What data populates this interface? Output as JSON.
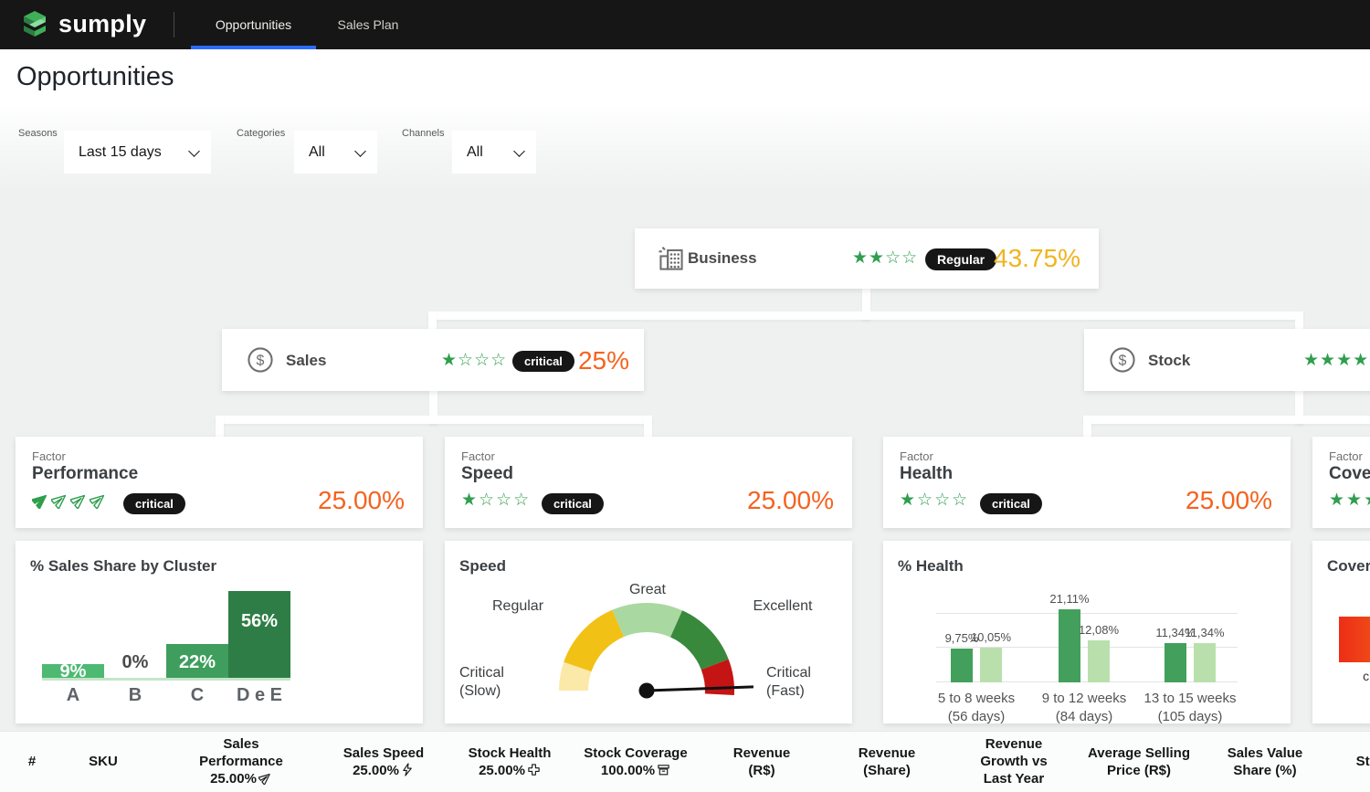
{
  "nav": {
    "brand": "sumply",
    "tabs": [
      {
        "label": "Opportunities",
        "active": true
      },
      {
        "label": "Sales Plan",
        "active": false
      }
    ]
  },
  "page": {
    "title": "Opportunities"
  },
  "filters": [
    {
      "label": "Seasons",
      "value": "Last 15 days"
    },
    {
      "label": "Categories",
      "value": "All"
    },
    {
      "label": "Channels",
      "value": "All"
    }
  ],
  "colors": {
    "nav_bg": "#161616",
    "active_tab_underline": "#2c6bff",
    "star_green": "#2f9e4e",
    "value_amber": "#f0b41f",
    "value_orange": "#f4631f",
    "badge_bg": "#161616",
    "canvas_bg": "#eff1f1"
  },
  "tree": {
    "business": {
      "label": "Business",
      "rating": {
        "filled": 2,
        "total": 4,
        "icon": "star"
      },
      "badge": "Regular",
      "value": "43.75%",
      "value_color": "#f0b41f"
    },
    "sales": {
      "label": "Sales",
      "rating": {
        "filled": 1,
        "total": 4,
        "icon": "star"
      },
      "badge": "critical",
      "value": "25%",
      "value_color": "#f4631f"
    },
    "stock": {
      "label": "Stock",
      "rating": {
        "filled": 4,
        "total": 4,
        "icon": "star"
      }
    },
    "factors": [
      {
        "kicker": "Factor",
        "name": "Performance",
        "rating": {
          "filled": 1,
          "total": 4,
          "icon": "jet"
        },
        "badge": "critical",
        "value": "25.00%"
      },
      {
        "kicker": "Factor",
        "name": "Speed",
        "rating": {
          "filled": 1,
          "total": 4,
          "icon": "star"
        },
        "badge": "critical",
        "value": "25.00%"
      },
      {
        "kicker": "Factor",
        "name": "Health",
        "rating": {
          "filled": 1,
          "total": 4,
          "icon": "star"
        },
        "badge": "critical",
        "value": "25.00%"
      },
      {
        "kicker": "Factor",
        "name": "Coverage",
        "rating": {
          "filled": 4,
          "total": 4,
          "icon": "star"
        }
      }
    ]
  },
  "chart_data": [
    {
      "id": "sales_share_by_cluster",
      "type": "bar",
      "title": "% Sales Share by Cluster",
      "categories": [
        "A",
        "B",
        "C",
        "D e E"
      ],
      "values": [
        9,
        0,
        22,
        56
      ],
      "value_labels": [
        "9%",
        "0%",
        "22%",
        "56%"
      ],
      "bar_colors": [
        "#4db973",
        "#4db973",
        "#3f9e5d",
        "#2e7d46"
      ],
      "ylim": [
        0,
        60
      ],
      "grid": false
    },
    {
      "id": "speed_gauge",
      "type": "gauge",
      "title": "Speed",
      "segments": [
        {
          "label": "Critical (Slow)",
          "from_deg": 180,
          "to_deg": 161,
          "color": "#fbe9a9"
        },
        {
          "label": "Regular",
          "from_deg": 161,
          "to_deg": 113,
          "color": "#f2c116"
        },
        {
          "label": "Great",
          "from_deg": 113,
          "to_deg": 66,
          "color": "#a9d8a1"
        },
        {
          "label": "Excellent",
          "from_deg": 66,
          "to_deg": 21,
          "color": "#39893d"
        },
        {
          "label": "Critical (Fast)",
          "from_deg": 21,
          "to_deg": -3,
          "color": "#c41414"
        }
      ],
      "needle_angle_deg": 2
    },
    {
      "id": "health",
      "type": "grouped_bar",
      "title": "% Health",
      "categories": [
        {
          "line1": "5 to 8 weeks",
          "line2": "(56 days)"
        },
        {
          "line1": "9 to 12 weeks",
          "line2": "(84 days)"
        },
        {
          "line1": "13 to 15 weeks",
          "line2": "(105 days)"
        }
      ],
      "series": [
        {
          "name": "health-dark",
          "color": "#43a05c",
          "values": [
            9.75,
            21.11,
            11.34
          ],
          "value_labels": [
            "9,75%",
            "21,11%",
            "11,34%"
          ]
        },
        {
          "name": "health-light",
          "color": "#b9e0ac",
          "values": [
            10.05,
            12.08,
            11.34
          ],
          "value_labels": [
            "10,05%",
            "12,08%",
            "11,34%"
          ]
        }
      ],
      "ylim": [
        0,
        22
      ],
      "grid": true,
      "gridline_values": [
        0,
        10,
        20
      ]
    },
    {
      "id": "coverage",
      "type": "bar",
      "title": "Coverage",
      "categories": [
        "critical"
      ],
      "bar_gradient": [
        "#ee2d16",
        "#f2741c"
      ]
    }
  ],
  "table": {
    "columns": [
      {
        "label": "#"
      },
      {
        "label": "SKU"
      },
      {
        "label": "Sales Performance",
        "value": "25.00%",
        "icon": "jet"
      },
      {
        "label": "Sales Speed",
        "value": "25.00%",
        "icon": "bolt"
      },
      {
        "label": "Stock Health",
        "value": "25.00%",
        "icon": "health"
      },
      {
        "label": "Stock Coverage",
        "value": "100.00%",
        "icon": "box"
      },
      {
        "label": "Revenue (R$)"
      },
      {
        "label": "Revenue (Share)"
      },
      {
        "label": "Revenue Growth vs Last Year"
      },
      {
        "label": "Average Selling Price (R$)"
      },
      {
        "label": "Sales Value Share (%)"
      },
      {
        "label": "Stock"
      }
    ]
  }
}
